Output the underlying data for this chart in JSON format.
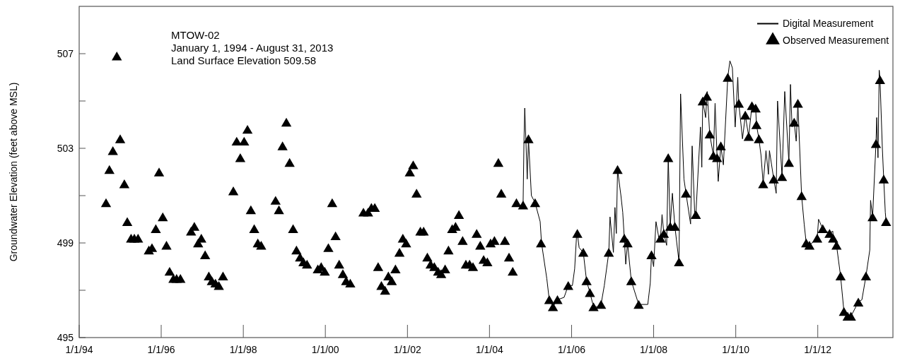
{
  "chart_data": {
    "type": "line",
    "title": "MTOW-02",
    "subtitle": "January 1, 1994 - August 31, 2013",
    "annotations": [
      "Land Surface Elevation 509.58"
    ],
    "ylabel": "Groundwater Elevation (feet above MSL)",
    "xlim": [
      "1994-01-01",
      "2013-10-31"
    ],
    "xticks": [
      {
        "value": "1994-01-01",
        "label": "1/1/94"
      },
      {
        "value": "1996-01-01",
        "label": "1/1/96"
      },
      {
        "value": "1998-01-01",
        "label": "1/1/98"
      },
      {
        "value": "2000-01-01",
        "label": "1/1/00"
      },
      {
        "value": "2002-01-01",
        "label": "1/1/02"
      },
      {
        "value": "2004-01-01",
        "label": "1/1/04"
      },
      {
        "value": "2006-01-01",
        "label": "1/1/06"
      },
      {
        "value": "2008-01-01",
        "label": "1/1/08"
      },
      {
        "value": "2010-01-01",
        "label": "1/1/10"
      },
      {
        "value": "2012-01-01",
        "label": "1/1/12"
      }
    ],
    "ylim": [
      495,
      509
    ],
    "yticks": [
      495,
      {
        "value": 497,
        "label": null
      },
      499,
      {
        "value": 501,
        "label": null
      },
      503,
      {
        "value": 505,
        "label": null
      },
      507
    ],
    "legend": "top right",
    "series": [
      {
        "name": "Digital Measurement",
        "color": "#000000",
        "marker": "none",
        "line_style": "solid",
        "x": [
          "2004-10-26",
          "2004-11-03",
          "2004-11-10",
          "2004-12-02",
          "2004-12-13",
          "2005-01-08",
          "2005-02-10",
          "2005-03-27",
          "2005-04-08",
          "2005-05-25",
          "2005-06-16",
          "2005-07-19",
          "2005-08-28",
          "2005-10-26",
          "2005-12-02",
          "2006-01-08",
          "2006-01-28",
          "2006-02-14",
          "2006-02-21",
          "2006-03-09",
          "2006-04-15",
          "2006-05-14",
          "2006-06-13",
          "2006-07-15",
          "2006-08-14",
          "2006-09-20",
          "2006-10-19",
          "2006-11-28",
          "2006-12-09",
          "2007-01-08",
          "2007-01-22",
          "2007-02-03",
          "2007-02-14",
          "2007-03-16",
          "2007-04-01",
          "2007-04-15",
          "2007-04-28",
          "2007-05-14",
          "2007-06-16",
          "2007-08-21",
          "2007-11-10",
          "2007-12-02",
          "2007-12-13",
          "2008-01-01",
          "2008-01-22",
          "2008-02-17",
          "2008-03-02",
          "2008-03-16",
          "2008-04-01",
          "2008-04-26",
          "2008-05-10",
          "2008-05-28",
          "2008-06-16",
          "2008-07-08",
          "2008-08-14",
          "2008-08-28",
          "2008-09-27",
          "2008-10-15",
          "2008-11-25",
          "2008-12-09",
          "2009-01-01",
          "2009-01-11",
          "2009-02-21",
          "2009-03-05",
          "2009-03-13",
          "2009-04-08",
          "2009-04-19",
          "2009-04-22",
          "2009-05-14",
          "2009-06-16",
          "2009-07-01",
          "2009-07-19",
          "2009-07-29",
          "2009-08-21",
          "2009-09-13",
          "2009-10-22",
          "2009-11-10",
          "2009-12-02",
          "2009-12-27",
          "2010-01-19",
          "2010-01-28",
          "2010-03-02",
          "2010-03-27",
          "2010-04-26",
          "2010-05-25",
          "2010-06-27",
          "2010-07-04",
          "2010-07-26",
          "2010-08-14",
          "2010-09-02",
          "2010-09-27",
          "2010-10-19",
          "2010-10-28",
          "2010-12-05",
          "2010-12-27",
          "2011-01-08",
          "2011-02-17",
          "2011-03-13",
          "2011-04-19",
          "2011-05-03",
          "2011-05-17",
          "2011-06-05",
          "2011-06-23",
          "2011-07-08",
          "2011-08-10",
          "2011-09-02",
          "2011-09-20",
          "2011-10-19",
          "2011-12-27",
          "2012-01-08",
          "2012-02-14",
          "2012-04-15",
          "2012-05-14",
          "2012-05-17",
          "2012-06-16",
          "2012-07-22",
          "2012-08-21",
          "2012-09-23",
          "2012-10-22",
          "2012-12-27",
          "2013-01-28",
          "2013-03-05",
          "2013-04-08",
          "2013-04-15",
          "2013-05-03",
          "2013-06-02",
          "2013-06-09",
          "2013-06-20",
          "2013-07-01",
          "2013-07-08",
          "2013-07-29",
          "2013-08-10",
          "2013-08-24",
          "2013-08-31"
        ],
        "values": [
          500.6,
          503.3,
          504.7,
          501.7,
          503.4,
          501.0,
          500.7,
          499.9,
          499.0,
          497.5,
          496.6,
          496.3,
          496.6,
          496.7,
          497.2,
          497.2,
          497.9,
          499.3,
          499.4,
          498.8,
          498.6,
          497.4,
          496.9,
          496.3,
          496.3,
          496.4,
          497.2,
          498.6,
          500.1,
          498.6,
          500.5,
          499.4,
          502.1,
          501.0,
          500.3,
          499.2,
          498.1,
          499.0,
          497.4,
          496.4,
          496.4,
          497.3,
          498.5,
          498.0,
          499.9,
          499.2,
          499.2,
          500.2,
          499.4,
          498.9,
          502.6,
          499.7,
          501.1,
          499.7,
          498.2,
          505.3,
          501.7,
          501.1,
          499.8,
          503.1,
          500.2,
          500.2,
          503.9,
          502.2,
          505.0,
          504.3,
          505.2,
          505.4,
          503.6,
          502.7,
          504.9,
          502.6,
          501.6,
          503.1,
          502.3,
          506.0,
          506.7,
          506.4,
          503.9,
          506.0,
          504.9,
          503.4,
          504.4,
          503.5,
          504.8,
          504.7,
          504.0,
          503.4,
          502.7,
          501.5,
          502.9,
          501.9,
          502.9,
          501.7,
          501.1,
          505.0,
          501.8,
          505.4,
          502.4,
          505.7,
          503.9,
          504.1,
          503.3,
          504.9,
          501.0,
          499.8,
          499.0,
          498.9,
          499.2,
          500.0,
          499.6,
          499.4,
          499.5,
          499.2,
          498.9,
          497.6,
          496.1,
          495.9,
          495.9,
          496.5,
          496.6,
          497.6,
          498.7,
          500.8,
          500.1,
          503.2,
          504.3,
          502.6,
          506.3,
          505.9,
          503.0,
          501.7,
          500.3,
          499.9
        ]
      },
      {
        "name": "Observed Measurement",
        "type": "scatter",
        "color": "#000000",
        "marker": "triangle",
        "x": [
          "1994-08-28",
          "1994-09-27",
          "1994-10-28",
          "1994-12-02",
          "1995-01-01",
          "1995-02-07",
          "1995-03-05",
          "1995-04-08",
          "1995-05-07",
          "1995-06-09",
          "1995-09-13",
          "1995-10-11",
          "1995-11-14",
          "1995-12-13",
          "1996-01-15",
          "1996-02-17",
          "1996-03-16",
          "1996-04-19",
          "1996-05-17",
          "1996-06-20",
          "1996-09-23",
          "1996-10-22",
          "1996-11-25",
          "1996-12-23",
          "1997-01-26",
          "1997-02-28",
          "1997-03-27",
          "1997-04-28",
          "1997-05-28",
          "1997-07-04",
          "1997-10-04",
          "1997-11-03",
          "1997-12-05",
          "1998-01-08",
          "1998-02-07",
          "1998-03-09",
          "1998-04-08",
          "1998-05-10",
          "1998-06-09",
          "1998-10-15",
          "1998-11-14",
          "1998-12-16",
          "1999-01-19",
          "1999-02-17",
          "1999-03-20",
          "1999-04-19",
          "1999-05-21",
          "1999-06-20",
          "1999-07-22",
          "1999-10-26",
          "1999-11-25",
          "1999-12-27",
          "2000-01-28",
          "2000-03-02",
          "2000-04-01",
          "2000-05-03",
          "2000-06-05",
          "2000-07-04",
          "2000-08-10",
          "2000-12-05",
          "2001-01-15",
          "2001-02-14",
          "2001-03-16",
          "2001-04-15",
          "2001-05-14",
          "2001-06-16",
          "2001-07-15",
          "2001-08-14",
          "2001-09-16",
          "2001-10-22",
          "2001-11-21",
          "2001-12-20",
          "2002-01-22",
          "2002-02-21",
          "2002-03-23",
          "2002-04-26",
          "2002-05-25",
          "2002-06-27",
          "2002-07-26",
          "2002-08-28",
          "2002-10-01",
          "2002-10-28",
          "2002-12-02",
          "2003-01-01",
          "2003-02-03",
          "2003-03-05",
          "2003-04-04",
          "2003-05-07",
          "2003-06-05",
          "2003-07-08",
          "2003-08-07",
          "2003-09-09",
          "2003-10-11",
          "2003-11-10",
          "2003-12-13",
          "2004-01-11",
          "2004-02-14",
          "2004-03-20",
          "2004-04-15",
          "2004-05-17",
          "2004-06-23",
          "2004-07-26",
          "2004-08-28",
          "2004-10-26",
          "2004-12-13",
          "2005-02-10",
          "2005-04-04",
          "2005-06-16",
          "2005-07-19",
          "2005-08-28",
          "2005-12-02",
          "2006-02-21",
          "2006-04-15",
          "2006-05-14",
          "2006-06-13",
          "2006-07-15",
          "2006-09-20",
          "2006-11-28",
          "2007-02-14",
          "2007-04-15",
          "2007-05-14",
          "2007-06-16",
          "2007-08-21",
          "2007-12-13",
          "2008-03-02",
          "2008-04-01",
          "2008-05-10",
          "2008-05-28",
          "2008-07-08",
          "2008-08-14",
          "2008-10-15",
          "2009-01-11",
          "2009-03-13",
          "2009-04-19",
          "2009-05-14",
          "2009-06-16",
          "2009-07-19",
          "2009-08-21",
          "2009-10-22",
          "2010-01-28",
          "2010-03-27",
          "2010-04-26",
          "2010-05-25",
          "2010-06-27",
          "2010-07-04",
          "2010-07-26",
          "2010-09-02",
          "2010-12-05",
          "2011-02-17",
          "2011-04-19",
          "2011-06-05",
          "2011-07-08",
          "2011-08-10",
          "2011-09-20",
          "2011-10-19",
          "2011-12-27",
          "2012-02-14",
          "2012-04-15",
          "2012-05-17",
          "2012-06-16",
          "2012-07-22",
          "2012-08-21",
          "2012-09-23",
          "2012-10-22",
          "2012-12-27",
          "2013-03-05",
          "2013-05-03",
          "2013-06-02",
          "2013-07-08",
          "2013-08-10",
          "2013-08-31"
        ],
        "values": [
          500.7,
          502.1,
          502.9,
          506.9,
          503.4,
          501.5,
          499.9,
          499.2,
          499.2,
          499.2,
          498.7,
          498.8,
          499.6,
          502.0,
          500.1,
          498.9,
          497.8,
          497.5,
          497.5,
          497.5,
          499.5,
          499.7,
          499.0,
          499.2,
          498.5,
          497.6,
          497.4,
          497.3,
          497.2,
          497.6,
          501.2,
          503.3,
          502.6,
          503.3,
          503.8,
          500.4,
          499.6,
          499.0,
          498.9,
          500.8,
          500.4,
          503.1,
          504.1,
          502.4,
          499.6,
          498.7,
          498.4,
          498.2,
          498.1,
          497.9,
          498.0,
          497.8,
          498.8,
          500.7,
          499.3,
          498.1,
          497.7,
          497.4,
          497.3,
          500.3,
          500.3,
          500.5,
          500.5,
          498.0,
          497.2,
          497.0,
          497.6,
          497.4,
          497.9,
          498.6,
          499.2,
          499.0,
          502.0,
          502.3,
          501.1,
          499.5,
          499.5,
          498.4,
          498.1,
          498.0,
          497.8,
          497.7,
          497.9,
          498.7,
          499.6,
          499.7,
          500.2,
          499.1,
          498.1,
          498.1,
          498.0,
          499.4,
          498.9,
          498.3,
          498.2,
          499.0,
          499.1,
          502.4,
          501.1,
          499.1,
          498.4,
          497.8,
          500.7,
          500.6,
          503.4,
          500.7,
          499.0,
          496.6,
          496.3,
          496.6,
          497.2,
          499.4,
          498.6,
          497.4,
          496.9,
          496.3,
          496.4,
          498.6,
          502.1,
          499.2,
          499.0,
          497.4,
          496.4,
          498.5,
          499.2,
          499.4,
          502.6,
          499.7,
          499.7,
          498.2,
          501.1,
          500.2,
          505.0,
          505.2,
          503.6,
          502.7,
          502.6,
          503.1,
          506.0,
          504.9,
          504.4,
          503.5,
          504.8,
          504.7,
          504.0,
          503.4,
          501.5,
          501.7,
          501.8,
          502.4,
          504.1,
          504.9,
          501.0,
          499.0,
          498.9,
          499.2,
          499.6,
          499.4,
          499.2,
          498.9,
          497.6,
          496.1,
          495.9,
          495.9,
          496.5,
          497.6,
          500.1,
          503.2,
          505.9,
          501.7,
          499.9
        ]
      }
    ]
  }
}
